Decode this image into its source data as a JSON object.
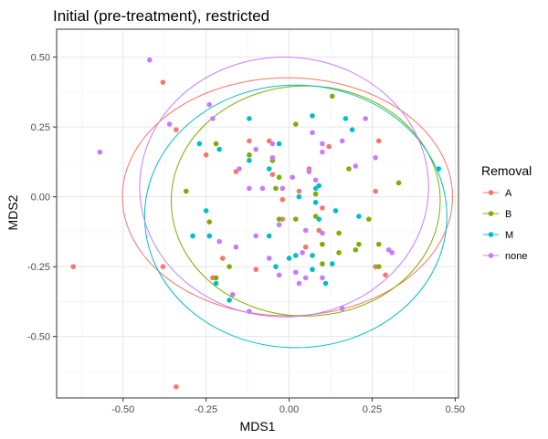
{
  "chart_data": {
    "type": "scatter",
    "title": "Initial (pre-treatment), restricted",
    "xlabel": "MDS1",
    "ylabel": "MDS2",
    "xlim": [
      -0.7,
      0.51
    ],
    "ylim": [
      -0.72,
      0.6
    ],
    "x_ticks": [
      -0.5,
      -0.25,
      0.0,
      0.25,
      0.5
    ],
    "x_tick_labels": [
      "-0.50",
      "-0.25",
      "0.00",
      "0.25",
      "0.50"
    ],
    "y_ticks": [
      -0.5,
      -0.25,
      0.0,
      0.25,
      0.5
    ],
    "y_tick_labels": [
      "-0.50",
      "-0.25",
      "0.00",
      "0.25",
      "0.50"
    ],
    "grid": true,
    "legend": {
      "title": "Removal",
      "placement": "right",
      "entries": [
        "A",
        "B",
        "M",
        "none"
      ]
    },
    "series": [
      {
        "name": "A",
        "color": "#F8766D",
        "ellipse": {
          "cx": -0.005,
          "cy": 0.0,
          "rx": 0.497,
          "ry": 0.426
        },
        "points": [
          [
            -0.38,
            0.41
          ],
          [
            -0.34,
            0.24
          ],
          [
            -0.65,
            -0.25
          ],
          [
            -0.38,
            -0.25
          ],
          [
            -0.34,
            -0.68
          ],
          [
            -0.23,
            -0.29
          ],
          [
            -0.16,
            0.09
          ],
          [
            -0.12,
            0.2
          ],
          [
            -0.05,
            0.08
          ],
          [
            -0.02,
            -0.08
          ],
          [
            0.03,
            0.02
          ],
          [
            0.06,
            0.1
          ],
          [
            0.09,
            -0.12
          ],
          [
            0.12,
            0.18
          ],
          [
            -0.25,
            0.15
          ],
          [
            -0.1,
            -0.26
          ],
          [
            0.26,
            0.02
          ],
          [
            0.27,
            0.2
          ],
          [
            0.26,
            -0.25
          ],
          [
            0.29,
            -0.28
          ],
          [
            -0.06,
            0.2
          ],
          [
            -0.02,
            -0.01
          ],
          [
            0.05,
            -0.18
          ],
          [
            0.1,
            -0.04
          ],
          [
            -0.2,
            -0.22
          ]
        ]
      },
      {
        "name": "B",
        "color": "#7CAE00",
        "ellipse": {
          "cx": 0.05,
          "cy": -0.015,
          "rx": 0.405,
          "ry": 0.412
        },
        "points": [
          [
            -0.31,
            0.02
          ],
          [
            -0.22,
            0.19
          ],
          [
            -0.12,
            0.15
          ],
          [
            -0.05,
            0.13
          ],
          [
            0.02,
            0.26
          ],
          [
            0.13,
            0.36
          ],
          [
            0.08,
            0.01
          ],
          [
            -0.03,
            -0.08
          ],
          [
            -0.24,
            -0.09
          ],
          [
            0.15,
            -0.13
          ],
          [
            0.24,
            -0.08
          ],
          [
            0.33,
            0.05
          ],
          [
            0.21,
            -0.17
          ],
          [
            -0.22,
            -0.29
          ],
          [
            -0.18,
            -0.25
          ],
          [
            0.08,
            -0.07
          ],
          [
            0.1,
            -0.17
          ],
          [
            0.02,
            -0.08
          ],
          [
            -0.03,
            0.07
          ],
          [
            0.18,
            0.1
          ],
          [
            0.15,
            -0.2
          ],
          [
            0.27,
            -0.17
          ],
          [
            0.1,
            -0.24
          ],
          [
            0.2,
            -0.19
          ],
          [
            0.27,
            -0.25
          ],
          [
            -0.04,
            0.03
          ]
        ]
      },
      {
        "name": "M",
        "color": "#00BFC4",
        "ellipse": {
          "cx": 0.02,
          "cy": -0.07,
          "rx": 0.455,
          "ry": 0.47
        },
        "points": [
          [
            -0.29,
            -0.14
          ],
          [
            -0.25,
            -0.05
          ],
          [
            -0.21,
            0.17
          ],
          [
            -0.12,
            0.13
          ],
          [
            -0.06,
            0.1
          ],
          [
            -0.03,
            0.19
          ],
          [
            0.08,
            0.03
          ],
          [
            0.08,
            -0.02
          ],
          [
            0.14,
            -0.05
          ],
          [
            0.17,
            0.28
          ],
          [
            0.21,
            -0.07
          ],
          [
            0.07,
            -0.21
          ],
          [
            0.0,
            -0.22
          ],
          [
            -0.04,
            -0.25
          ],
          [
            0.07,
            -0.26
          ],
          [
            0.09,
            -0.08
          ],
          [
            -0.22,
            -0.31
          ],
          [
            -0.18,
            -0.37
          ],
          [
            0.13,
            -0.24
          ],
          [
            0.45,
            0.1
          ],
          [
            -0.06,
            -0.14
          ],
          [
            0.03,
            0.0
          ],
          [
            0.11,
            -0.31
          ],
          [
            -0.12,
            0.28
          ],
          [
            0.07,
            0.29
          ],
          [
            -0.24,
            -0.14
          ],
          [
            0.02,
            -0.21
          ],
          [
            0.09,
            0.04
          ],
          [
            0.19,
            0.24
          ],
          [
            -0.27,
            0.19
          ]
        ]
      },
      {
        "name": "none",
        "color": "#C77CFF",
        "ellipse": {
          "cx": -0.015,
          "cy": 0.035,
          "rx": 0.435,
          "ry": 0.465
        },
        "points": [
          [
            -0.42,
            0.49
          ],
          [
            -0.57,
            0.16
          ],
          [
            -0.36,
            0.26
          ],
          [
            -0.24,
            0.33
          ],
          [
            -0.15,
            0.1
          ],
          [
            -0.12,
            0.03
          ],
          [
            -0.05,
            0.14
          ],
          [
            0.07,
            0.23
          ],
          [
            0.1,
            0.16
          ],
          [
            0.16,
            0.2
          ],
          [
            0.2,
            0.11
          ],
          [
            0.23,
            0.28
          ],
          [
            0.26,
            0.14
          ],
          [
            0.3,
            -0.19
          ],
          [
            0.31,
            -0.2
          ],
          [
            0.04,
            -0.2
          ],
          [
            -0.03,
            -0.1
          ],
          [
            -0.1,
            -0.14
          ],
          [
            -0.17,
            -0.35
          ],
          [
            -0.03,
            -0.28
          ],
          [
            0.05,
            -0.12
          ],
          [
            0.1,
            -0.29
          ],
          [
            -0.12,
            -0.41
          ],
          [
            0.16,
            -0.4
          ],
          [
            -0.08,
            0.03
          ],
          [
            0.01,
            0.07
          ],
          [
            -0.1,
            0.17
          ],
          [
            0.08,
            0.06
          ],
          [
            -0.02,
            0.03
          ],
          [
            -0.23,
            0.28
          ],
          [
            0.05,
            -0.29
          ],
          [
            -0.06,
            -0.22
          ],
          [
            0.06,
            0.09
          ],
          [
            0.1,
            -0.13
          ],
          [
            -0.21,
            -0.16
          ],
          [
            0.02,
            -0.27
          ],
          [
            0.03,
            -0.31
          ],
          [
            0.1,
            0.19
          ],
          [
            -0.05,
            0.19
          ],
          [
            -0.16,
            -0.18
          ]
        ]
      }
    ]
  }
}
